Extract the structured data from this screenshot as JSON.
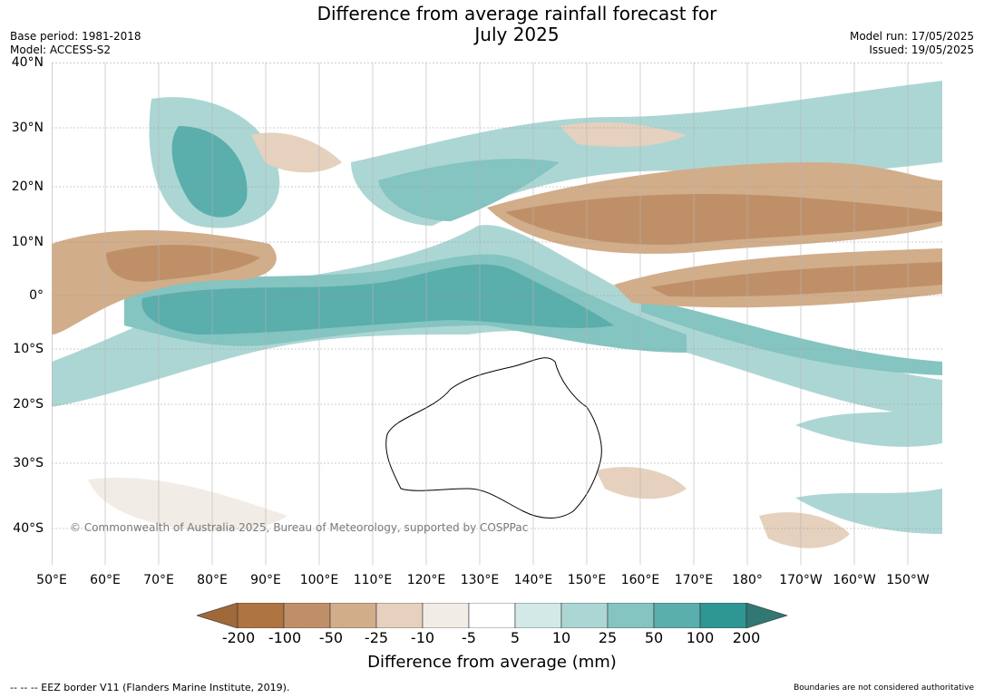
{
  "header": {
    "title_line1": "Difference from average rainfall forecast for",
    "title_line2": "July 2025",
    "base_period": "Base period: 1981-2018",
    "model": "Model: ACCESS-S2",
    "model_run": "Model run: 17/05/2025",
    "issued": "Issued: 19/05/2025"
  },
  "map": {
    "lat_labels": [
      "40°N",
      "30°N",
      "20°N",
      "10°N",
      "0°",
      "10°S",
      "20°S",
      "30°S",
      "40°S"
    ],
    "lon_labels": [
      "50°E",
      "60°E",
      "70°E",
      "80°E",
      "90°E",
      "100°E",
      "110°E",
      "120°E",
      "130°E",
      "140°E",
      "150°E",
      "160°E",
      "170°E",
      "180°",
      "170°W",
      "160°W",
      "150°W"
    ],
    "copyright": "© Commonwealth of Australia 2025, Bureau of Meteorology, supported by COSPPac"
  },
  "colorbar": {
    "ticks": [
      "-200",
      "-100",
      "-50",
      "-25",
      "-10",
      "-5",
      "5",
      "10",
      "25",
      "50",
      "100",
      "200"
    ],
    "colors": [
      "#a0693a",
      "#ae7442",
      "#bf9068",
      "#d2ad8a",
      "#e5d1be",
      "#f2ece6",
      "#ffffff",
      "#d3e9e7",
      "#acd6d4",
      "#84c4c1",
      "#5aaeab",
      "#2e9693",
      "#317773"
    ],
    "label": "Difference from average (mm)"
  },
  "footer": {
    "eez": "--  --  -- EEZ border V11 (Flanders Marine Institute, 2019).",
    "disclaimer": "Boundaries are not considered authoritative"
  }
}
